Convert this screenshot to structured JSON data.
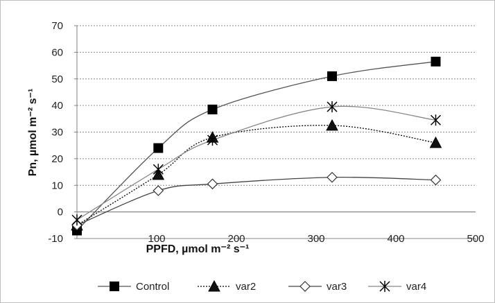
{
  "chart_data": {
    "type": "line",
    "xlabel": "PPFD, µmol m⁻² s⁻¹",
    "ylabel": "Pn, µmol m⁻² s⁻¹",
    "xlim": [
      0,
      500
    ],
    "ylim": [
      -10,
      70
    ],
    "x_ticks": [
      100,
      200,
      300,
      400,
      500
    ],
    "y_ticks": [
      -10,
      0,
      10,
      20,
      30,
      40,
      50,
      60,
      70
    ],
    "grid": "horizontal",
    "legend_position": "bottom",
    "series": [
      {
        "name": "Control",
        "marker": "filled-square",
        "line": "solid",
        "color": "#555555",
        "x": [
          0,
          102,
          170,
          320,
          450
        ],
        "y": [
          -7,
          24,
          38.5,
          51,
          56.5
        ]
      },
      {
        "name": "var2",
        "marker": "filled-triangle",
        "line": "dotted",
        "color": "#000000",
        "x": [
          0,
          102,
          170,
          320,
          450
        ],
        "y": [
          -5,
          14,
          28,
          32.5,
          26
        ]
      },
      {
        "name": "var3",
        "marker": "open-diamond",
        "line": "solid",
        "color": "#444444",
        "x": [
          0,
          102,
          170,
          320,
          450
        ],
        "y": [
          -5,
          8,
          10.5,
          13,
          12
        ]
      },
      {
        "name": "var4",
        "marker": "asterisk",
        "line": "solid",
        "color": "#888888",
        "x": [
          0,
          102,
          170,
          320,
          450
        ],
        "y": [
          -3,
          16,
          27,
          39.5,
          34.5
        ]
      }
    ]
  }
}
